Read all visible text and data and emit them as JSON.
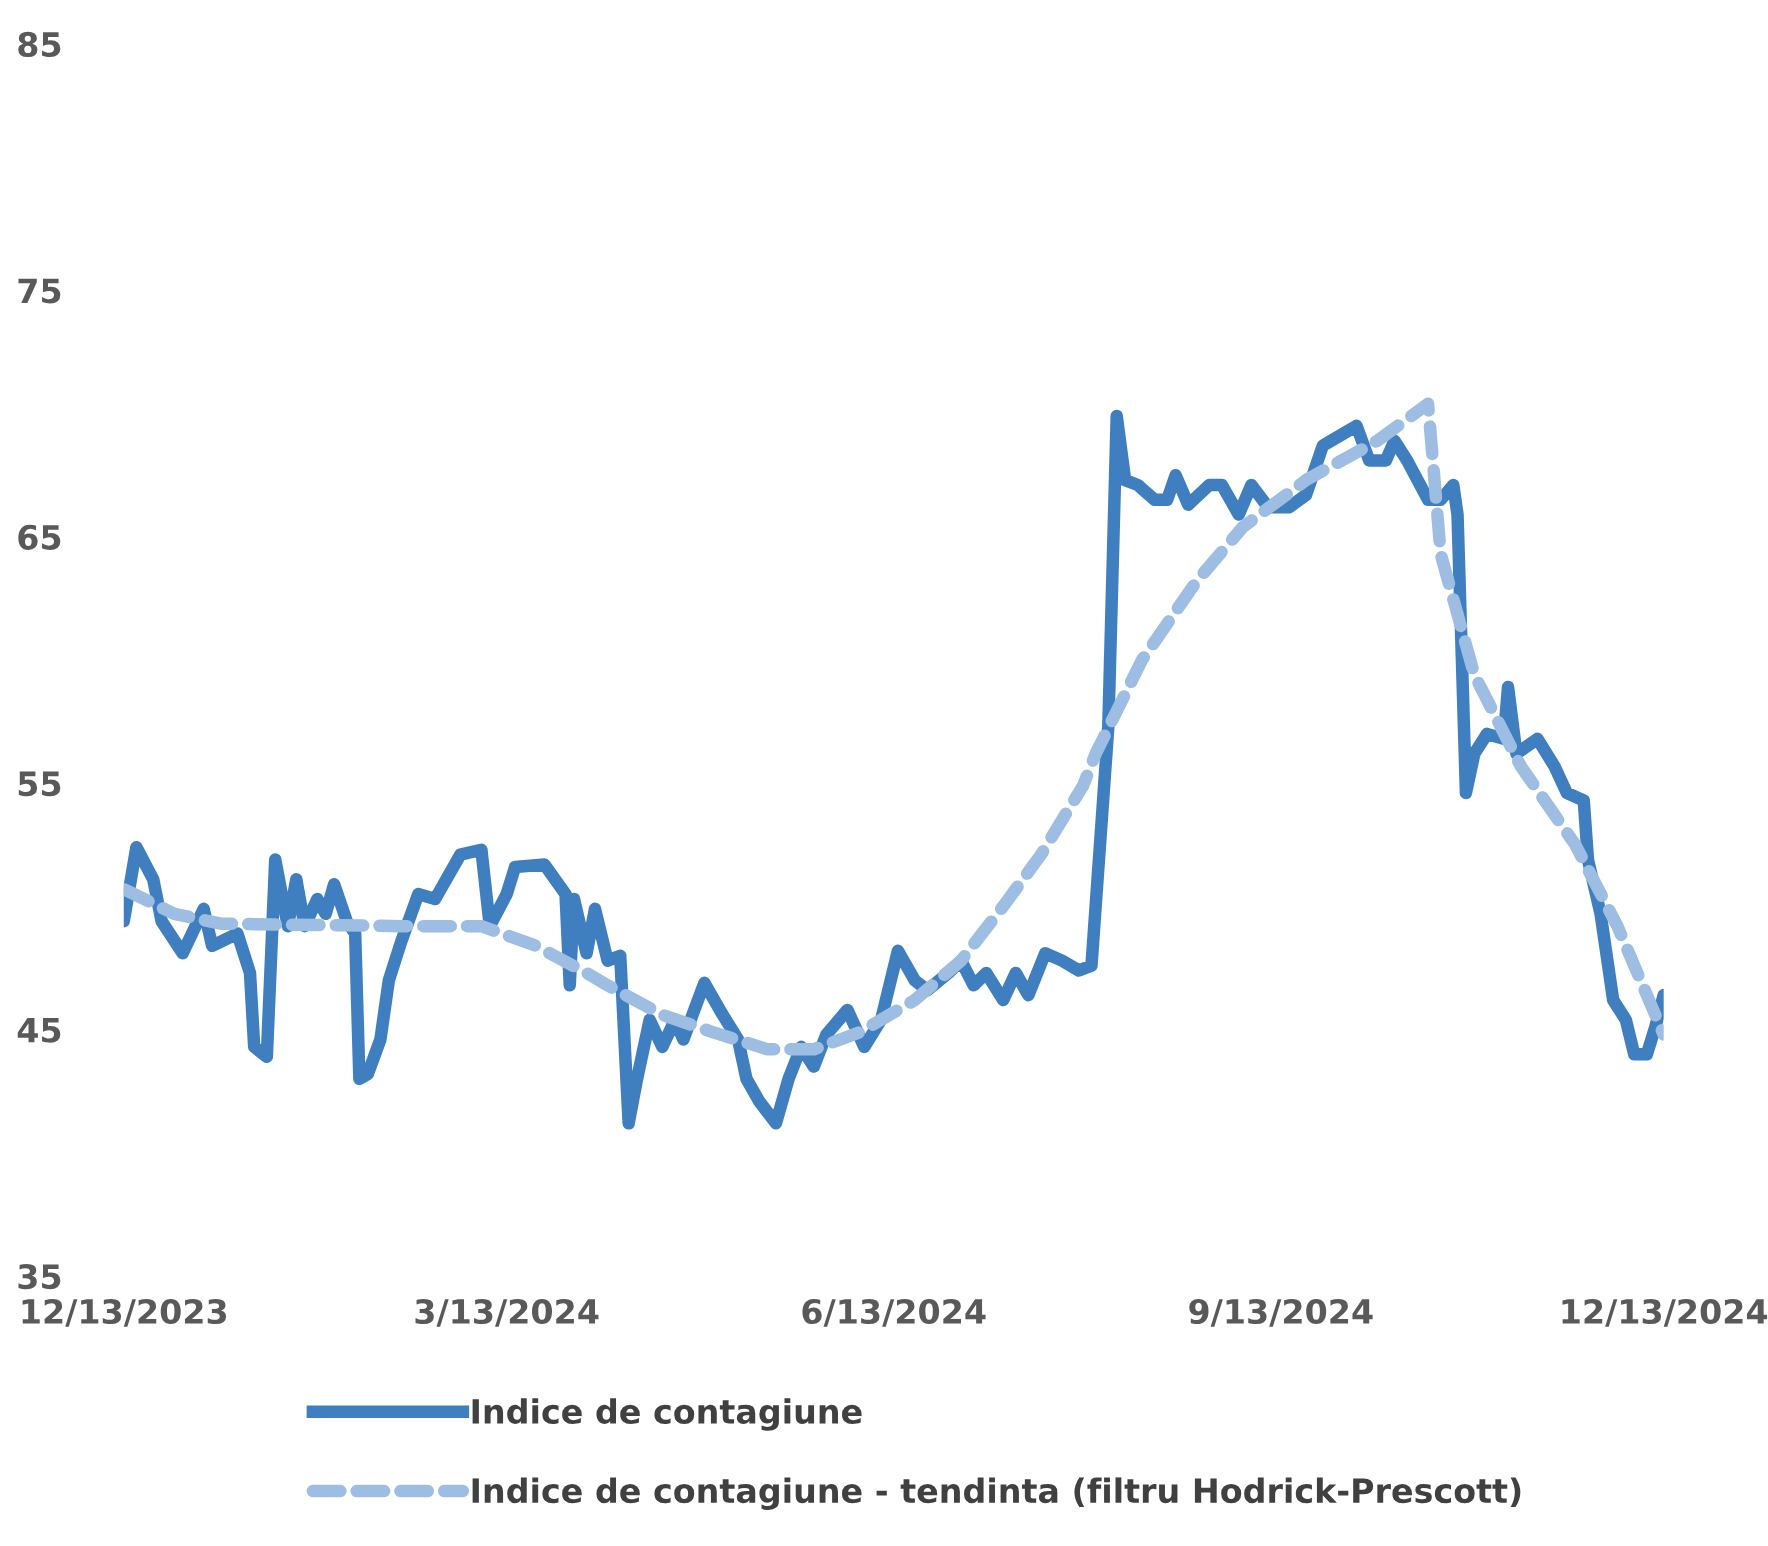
{
  "chart_data": {
    "type": "line",
    "xlim": [
      "2023-12-13",
      "2024-12-13"
    ],
    "xticks": [
      {
        "value": "2023-12-13",
        "label": "12/13/2023"
      },
      {
        "value": "2024-03-13",
        "label": "3/13/2024"
      },
      {
        "value": "2024-06-13",
        "label": "6/13/2024"
      },
      {
        "value": "2024-09-13",
        "label": "9/13/2024"
      },
      {
        "value": "2024-12-13",
        "label": "12/13/2024"
      }
    ],
    "ylim": [
      35,
      85
    ],
    "yticks": [
      35,
      45,
      55,
      65,
      75,
      85
    ],
    "grid": false,
    "legend": "bottom",
    "marker": "none",
    "series": [
      {
        "name": "Indice de contagiune",
        "color": "#3f7fc0",
        "line_style": "solid",
        "x": [
          "2023-12-13",
          "2023-12-16",
          "2023-12-20",
          "2023-12-22",
          "2023-12-27",
          "2024-01-01",
          "2024-01-03",
          "2024-01-09",
          "2024-01-12",
          "2024-01-13",
          "2024-01-16",
          "2024-01-18",
          "2024-01-21",
          "2024-01-23",
          "2024-01-25",
          "2024-01-28",
          "2024-01-30",
          "2024-02-01",
          "2024-02-04",
          "2024-02-06",
          "2024-02-07",
          "2024-02-09",
          "2024-02-12",
          "2024-02-14",
          "2024-02-17",
          "2024-02-21",
          "2024-02-25",
          "2024-02-27",
          "2024-03-02",
          "2024-03-07",
          "2024-03-09",
          "2024-03-13",
          "2024-03-15",
          "2024-03-22",
          "2024-03-27",
          "2024-03-28",
          "2024-03-29",
          "2024-04-01",
          "2024-04-03",
          "2024-04-06",
          "2024-04-09",
          "2024-04-11",
          "2024-04-13",
          "2024-04-16",
          "2024-04-19",
          "2024-04-22",
          "2024-04-24",
          "2024-04-29",
          "2024-05-03",
          "2024-05-07",
          "2024-05-09",
          "2024-05-12",
          "2024-05-16",
          "2024-05-19",
          "2024-05-22",
          "2024-05-25",
          "2024-05-28",
          "2024-06-02",
          "2024-06-06",
          "2024-06-10",
          "2024-06-14",
          "2024-06-18",
          "2024-06-21",
          "2024-06-26",
          "2024-06-29",
          "2024-07-02",
          "2024-07-05",
          "2024-07-09",
          "2024-07-12",
          "2024-07-15",
          "2024-07-19",
          "2024-07-23",
          "2024-07-27",
          "2024-07-30",
          "2024-08-03",
          "2024-08-05",
          "2024-08-07",
          "2024-08-10",
          "2024-08-14",
          "2024-08-17",
          "2024-08-19",
          "2024-08-22",
          "2024-08-27",
          "2024-08-30",
          "2024-09-03",
          "2024-09-06",
          "2024-09-10",
          "2024-09-15",
          "2024-09-19",
          "2024-09-23",
          "2024-09-27",
          "2024-10-01",
          "2024-10-04",
          "2024-10-08",
          "2024-10-10",
          "2024-10-13",
          "2024-10-18",
          "2024-10-21",
          "2024-10-24",
          "2024-10-25",
          "2024-10-27",
          "2024-10-29",
          "2024-11-01",
          "2024-11-05",
          "2024-11-06",
          "2024-11-08",
          "2024-11-13",
          "2024-11-17",
          "2024-11-20",
          "2024-11-24",
          "2024-11-25",
          "2024-11-28",
          "2024-12-01",
          "2024-12-04",
          "2024-12-06",
          "2024-12-09",
          "2024-12-11",
          "2024-12-13"
        ],
        "values": [
          49.4,
          52.4,
          51.1,
          49.4,
          48.1,
          49.9,
          48.4,
          48.9,
          47.3,
          44.3,
          43.9,
          51.9,
          49.2,
          51.1,
          49.2,
          50.3,
          49.7,
          50.9,
          49.4,
          48.9,
          43.0,
          43.2,
          44.6,
          47.0,
          48.6,
          50.5,
          50.3,
          50.9,
          52.1,
          52.3,
          49.2,
          50.5,
          51.6,
          51.7,
          50.5,
          46.8,
          50.3,
          48.1,
          49.9,
          47.8,
          48.0,
          41.2,
          43.0,
          45.4,
          44.3,
          45.4,
          44.6,
          46.9,
          45.7,
          44.6,
          43.0,
          42.1,
          41.2,
          43.0,
          44.3,
          43.5,
          44.8,
          45.8,
          44.3,
          45.4,
          48.2,
          47.0,
          46.6,
          47.3,
          47.8,
          46.8,
          47.3,
          46.2,
          47.3,
          46.4,
          48.1,
          47.8,
          47.4,
          47.6,
          57.3,
          69.9,
          67.3,
          67.1,
          66.5,
          66.5,
          67.5,
          66.3,
          67.1,
          67.1,
          65.9,
          67.1,
          66.2,
          66.2,
          66.7,
          68.7,
          69.1,
          69.5,
          68.1,
          68.1,
          68.9,
          68.1,
          66.5,
          66.5,
          67.1,
          65.9,
          54.6,
          56.2,
          57.0,
          56.8,
          58.9,
          56.2,
          56.8,
          55.7,
          54.6,
          54.3,
          51.9,
          49.7,
          46.2,
          45.4,
          44.0,
          44.0,
          45.1,
          46.4
        ]
      },
      {
        "name": "Indice de contagiune - tendinta (filtru Hodrick-Prescott)",
        "color": "#9dbde3",
        "line_style": "dashed",
        "x": [
          "2023-12-13",
          "2023-12-25",
          "2024-01-05",
          "2024-02-17",
          "2024-03-07",
          "2024-03-20",
          "2024-04-01",
          "2024-04-06",
          "2024-04-19",
          "2024-05-01",
          "2024-05-14",
          "2024-05-25",
          "2024-06-05",
          "2024-06-18",
          "2024-06-29",
          "2024-07-09",
          "2024-07-18",
          "2024-07-28",
          "2024-07-31",
          "2024-08-11",
          "2024-08-24",
          "2024-09-04",
          "2024-09-19",
          "2024-10-06",
          "2024-10-18",
          "2024-10-21",
          "2024-10-29",
          "2024-11-09",
          "2024-11-22",
          "2024-12-02",
          "2024-12-08",
          "2024-12-13"
        ],
        "values": [
          50.7,
          49.7,
          49.3,
          49.2,
          49.2,
          48.4,
          47.3,
          46.8,
          45.6,
          44.9,
          44.2,
          44.2,
          44.9,
          46.2,
          47.8,
          50.0,
          52.1,
          54.9,
          56.2,
          60.0,
          63.2,
          65.4,
          67.3,
          68.9,
          70.4,
          64.3,
          59.4,
          55.7,
          52.5,
          49.2,
          46.8,
          44.8
        ]
      }
    ]
  }
}
